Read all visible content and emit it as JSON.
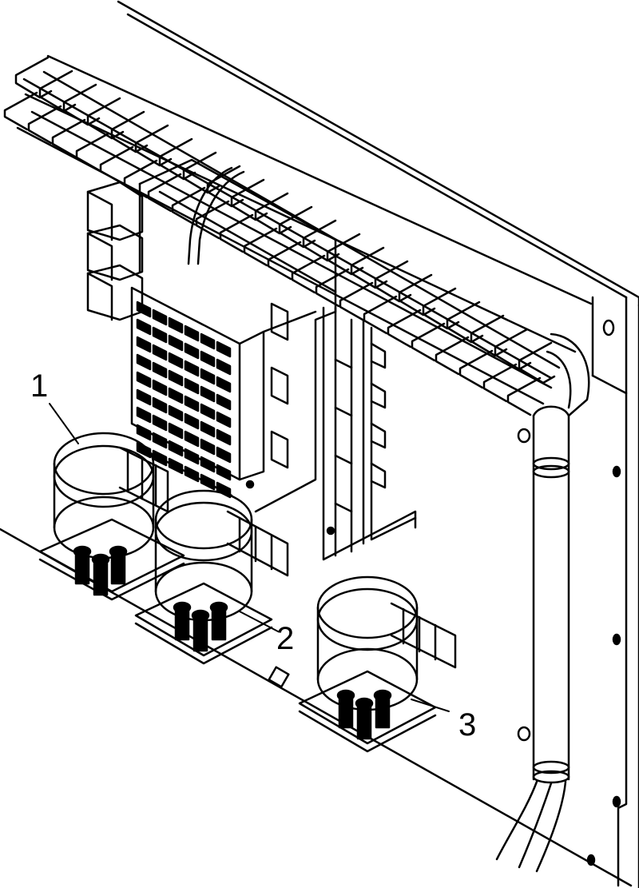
{
  "figure": {
    "line_color": "#000000",
    "background": "#ffffff",
    "callouts": [
      {
        "label": "1"
      },
      {
        "label": "2"
      },
      {
        "label": "3"
      }
    ]
  }
}
